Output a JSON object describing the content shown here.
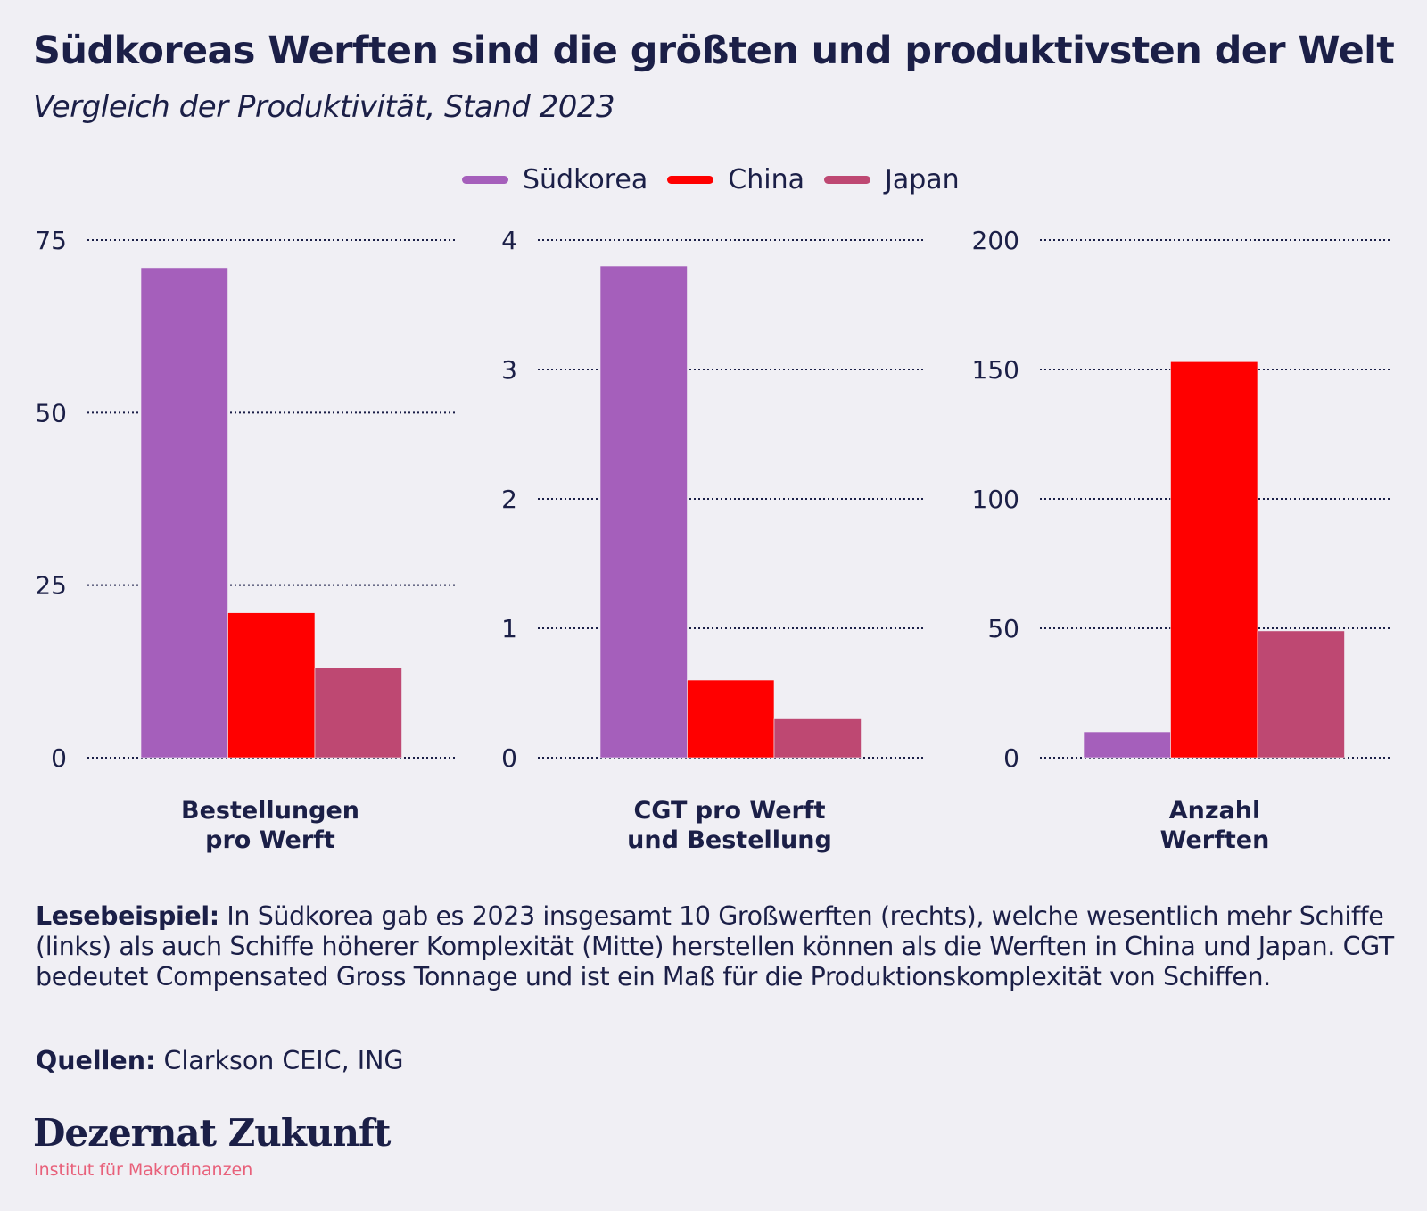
{
  "header": {
    "title": "Südkoreas Werften sind die größten und produktivsten der Welt",
    "subtitle": "Vergleich der Produktivität, Stand 2023"
  },
  "legend": [
    {
      "label": "Südkorea",
      "color": "#a55fbb"
    },
    {
      "label": "China",
      "color": "#ff0000"
    },
    {
      "label": "Japan",
      "color": "#be4872"
    }
  ],
  "chart_data": [
    {
      "type": "bar",
      "title": "Bestellungen pro Werft",
      "category_label_lines": [
        "Bestellungen",
        "pro Werft"
      ],
      "series": [
        {
          "name": "Südkorea",
          "values": [
            71
          ]
        },
        {
          "name": "China",
          "values": [
            21
          ]
        },
        {
          "name": "Japan",
          "values": [
            13
          ]
        }
      ],
      "yticks": [
        0,
        25,
        50,
        75
      ],
      "ylim": [
        0,
        75
      ],
      "grid": true,
      "legend": "top-center"
    },
    {
      "type": "bar",
      "title": "CGT pro Werft und Bestellung",
      "category_label_lines": [
        "CGT pro Werft",
        "und Bestellung"
      ],
      "series": [
        {
          "name": "Südkorea",
          "values": [
            3.8
          ]
        },
        {
          "name": "China",
          "values": [
            0.6
          ]
        },
        {
          "name": "Japan",
          "values": [
            0.3
          ]
        }
      ],
      "yticks": [
        0,
        1,
        2,
        3,
        4
      ],
      "ylim": [
        0,
        4
      ],
      "grid": true,
      "legend": "top-center"
    },
    {
      "type": "bar",
      "title": "Anzahl Werften",
      "category_label_lines": [
        "Anzahl",
        "Werften"
      ],
      "series": [
        {
          "name": "Südkorea",
          "values": [
            10
          ]
        },
        {
          "name": "China",
          "values": [
            153
          ]
        },
        {
          "name": "Japan",
          "values": [
            49
          ]
        }
      ],
      "yticks": [
        0,
        50,
        100,
        150,
        200
      ],
      "ylim": [
        0,
        200
      ],
      "grid": true,
      "legend": "top-center"
    }
  ],
  "note": {
    "label": "Lesebeispiel:",
    "text": " In Südkorea gab es 2023 insgesamt 10 Großwerften (rechts), welche wesentlich mehr Schiffe (links) als auch Schiffe höherer Komplexität (Mitte) herstellen können als die Werften in China und Japan. CGT bedeutet Compensated Gross Tonnage und ist ein Maß für die Produktionskomplexität von Schiffen."
  },
  "source": {
    "label": "Quellen:",
    "text": " Clarkson CEIC, ING"
  },
  "brand": {
    "name": "Dezernat Zukunft",
    "tagline": "Institut für Makrofinanzen",
    "tagline_color": "#e8607a"
  }
}
